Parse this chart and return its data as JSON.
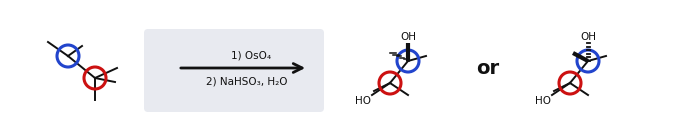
{
  "background_color": "#ffffff",
  "arrow_box_color": "#e8eaf0",
  "arrow_text_line1": "1) OsO₄",
  "arrow_text_line2": "2) NaHSO₃, H₂O",
  "or_text": "or",
  "blue_color": "#2244cc",
  "red_color": "#cc1111",
  "line_color": "#111111",
  "figsize": [
    6.95,
    1.36
  ],
  "dpi": 100,
  "lw": 1.4,
  "circle_lw": 2.2,
  "circle_r": 11
}
